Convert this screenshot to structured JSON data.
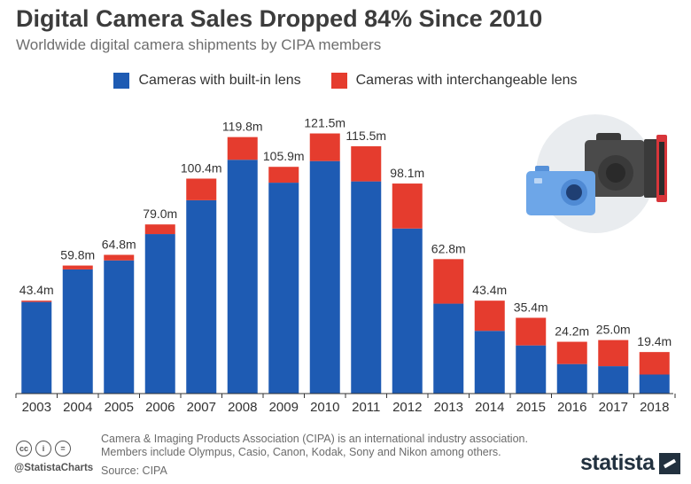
{
  "title": "Digital Camera Sales Dropped 84% Since 2010",
  "subtitle": "Worldwide digital camera shipments by CIPA members",
  "colors": {
    "builtin": "#1e5bb3",
    "interchangeable": "#e53c2e",
    "axis": "#333333",
    "text": "#333333"
  },
  "chart_data": {
    "type": "bar",
    "stacked": true,
    "categories": [
      "2003",
      "2004",
      "2005",
      "2006",
      "2007",
      "2008",
      "2009",
      "2010",
      "2011",
      "2012",
      "2013",
      "2014",
      "2015",
      "2016",
      "2017",
      "2018"
    ],
    "series": [
      {
        "name": "Cameras with built-in lens",
        "color": "#1e5bb3",
        "values": [
          42.8,
          58.0,
          62.2,
          74.5,
          90.3,
          109.2,
          98.5,
          108.6,
          99.1,
          77.1,
          42.0,
          29.3,
          22.5,
          13.8,
          12.8,
          8.9
        ]
      },
      {
        "name": "Cameras with interchangeable lens",
        "color": "#e53c2e",
        "values": [
          0.6,
          1.8,
          2.6,
          4.5,
          10.1,
          10.6,
          7.4,
          12.9,
          16.4,
          21.0,
          20.8,
          14.1,
          12.9,
          10.4,
          12.2,
          10.5
        ]
      }
    ],
    "totals": [
      43.4,
      59.8,
      64.8,
      79.0,
      100.4,
      119.8,
      105.9,
      121.5,
      115.5,
      98.1,
      62.8,
      43.4,
      35.4,
      24.2,
      25.0,
      19.4
    ],
    "total_labels": [
      "43.4m",
      "59.8m",
      "64.8m",
      "79.0m",
      "100.4m",
      "119.8m",
      "105.9m",
      "121.5m",
      "115.5m",
      "98.1m",
      "62.8m",
      "43.4m",
      "35.4m",
      "24.2m",
      "25.0m",
      "19.4m"
    ],
    "ylim": [
      0,
      130
    ],
    "legend_position": "top-center",
    "grid": false
  },
  "legend": {
    "builtin_label": "Cameras with built-in lens",
    "interchangeable_label": "Cameras with interchangeable lens"
  },
  "footer": {
    "note_line1": "Camera & Imaging Products Association (CIPA) is an international industry association.",
    "note_line2": "Members include Olympus, Casio, Canon, Kodak, Sony and Nikon among others.",
    "source": "Source: CIPA",
    "handle": "@StatistaCharts",
    "brand": "statista",
    "cc_badges": [
      "cc",
      "i",
      "="
    ]
  },
  "illustration": {
    "icon": "camera-icons",
    "circle_color": "#e9ecef",
    "compact_camera_color": "#6da6e8",
    "dslr_body_color": "#4a4a4a",
    "lens_accent_color": "#d8353a"
  }
}
